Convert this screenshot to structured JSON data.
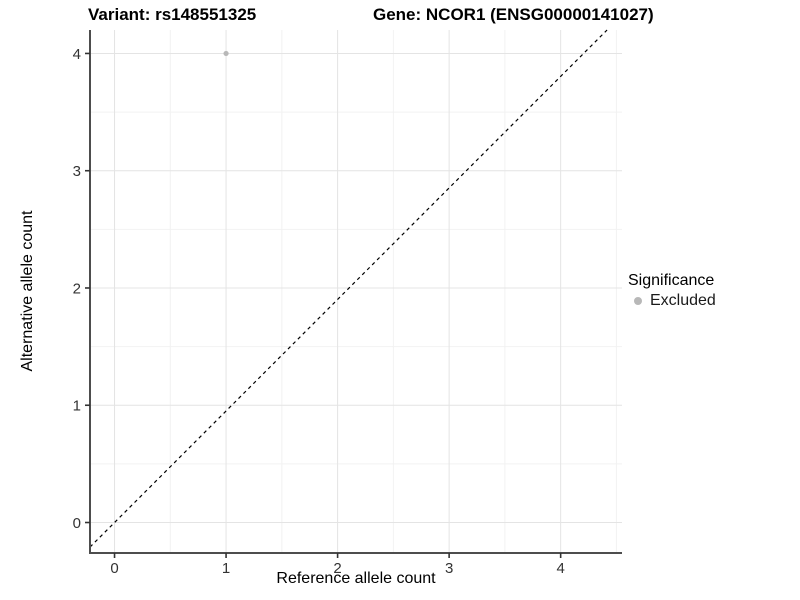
{
  "chart_data": {
    "type": "scatter",
    "title_left": "Variant: rs148551325",
    "title_right": "Gene: NCOR1 (ENSG00000141027)",
    "xlabel": "Reference allele count",
    "ylabel": "Alternative allele count",
    "xticks": [
      0,
      1,
      2,
      3,
      4
    ],
    "yticks": [
      0,
      1,
      2,
      3,
      4
    ],
    "xlim": [
      -0.22,
      4.55
    ],
    "ylim": [
      -0.26,
      4.2
    ],
    "grid": "major and minor (half-step) light gray gridlines on white panel",
    "minor_step": 0.5,
    "series": [
      {
        "name": "Excluded",
        "color": "#b8b8b8",
        "points": [
          {
            "x": 1,
            "y": 4
          }
        ]
      }
    ],
    "reference_line": {
      "description": "dashed identity line y = x from bottom-left to top-right",
      "style": "dashed",
      "color": "#000000"
    },
    "legend": {
      "position": "right",
      "title": "Significance",
      "items": [
        {
          "label": "Excluded",
          "color": "#b8b8b8"
        }
      ]
    },
    "colors": {
      "grid_major": "#e4e4e4",
      "grid_minor": "#f2f2f2",
      "axis_line": "#4d4d4d",
      "tick_mark": "#333333",
      "tick_label": "#333333",
      "point": "#b8b8b8",
      "ref_line": "#000000",
      "background": "#ffffff"
    }
  }
}
